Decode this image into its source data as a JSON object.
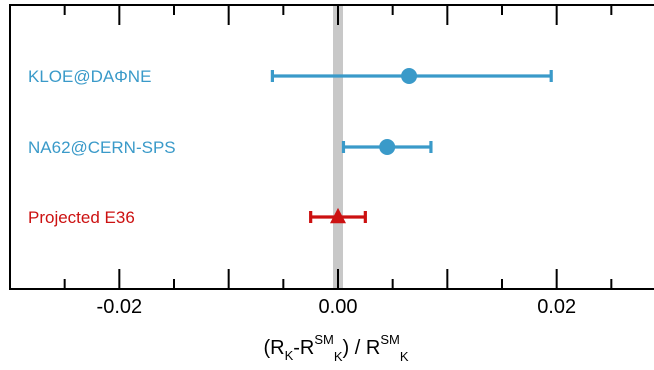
{
  "chart_data": {
    "type": "scatter",
    "title": "",
    "xlabel": {
      "open": "(R",
      "sub1": "K",
      "dash": "-R",
      "sup2": "SM",
      "sub2": "K",
      "mid": ") / R",
      "sup3": "SM",
      "sub3": "K"
    },
    "ylabel": "",
    "xlim": [
      -0.03,
      0.03
    ],
    "xticks": [
      -0.02,
      0.0,
      0.02
    ],
    "xticklabels": [
      "-0.02",
      "0.00",
      "0.02"
    ],
    "reference_line": {
      "x": 0.0,
      "color": "#c8c8c8"
    },
    "grid": false,
    "series": [
      {
        "name": "KLOE@DAΦNE",
        "value": 0.0065,
        "err_low": 0.0125,
        "err_high": 0.013,
        "marker": "circle",
        "color": "#3a9ac9"
      },
      {
        "name": "NA62@CERN-SPS",
        "value": 0.0045,
        "err_low": 0.004,
        "err_high": 0.004,
        "marker": "circle",
        "color": "#3a9ac9"
      },
      {
        "name": "Projected E36",
        "value": 0.0,
        "err_low": 0.0025,
        "err_high": 0.0025,
        "marker": "triangle",
        "color": "#cc1111"
      }
    ]
  }
}
